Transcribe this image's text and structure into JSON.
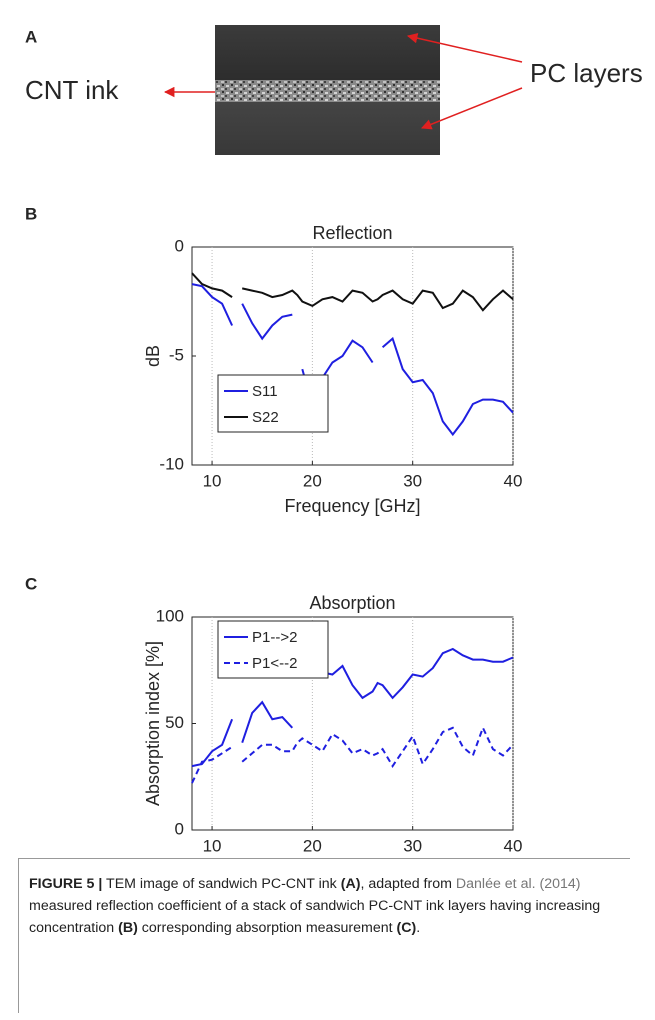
{
  "panel_a": {
    "label": "A",
    "annotations": [
      "CNT ink",
      "PC layers"
    ]
  },
  "chart_data": [
    {
      "type": "line",
      "panel_label": "B",
      "title": "Reflection",
      "x_label": "Frequency [GHz]",
      "y_label": "dB",
      "x": [
        8,
        9,
        10,
        11,
        12,
        12.5,
        13,
        14,
        15,
        16,
        17,
        18,
        18.5,
        19,
        20,
        21,
        22,
        23,
        24,
        25,
        26,
        26.5,
        27,
        28,
        29,
        30,
        31,
        32,
        33,
        34,
        35,
        36,
        37,
        38,
        39,
        40
      ],
      "xlim": [
        8,
        40
      ],
      "xticks": [
        10,
        20,
        30,
        40
      ],
      "ylim": [
        -10,
        0
      ],
      "yticks": [
        -10,
        -5,
        0
      ],
      "grid": true,
      "legend": "lower left",
      "series": [
        {
          "name": "S11",
          "color": "#1f1fe0",
          "linestyle": "solid",
          "values": [
            -1.7,
            -1.8,
            -2.3,
            -2.6,
            -3.6,
            null,
            -2.6,
            -3.5,
            -4.2,
            -3.6,
            -3.2,
            -3.1,
            null,
            -5.6,
            -7.3,
            -6.0,
            -5.3,
            -5.0,
            -4.3,
            -4.6,
            -5.3,
            null,
            -4.6,
            -4.2,
            -5.6,
            -6.2,
            -6.1,
            -6.7,
            -8.0,
            -8.6,
            -8.0,
            -7.2,
            -7.0,
            -7.0,
            -7.1,
            -7.6
          ]
        },
        {
          "name": "S22",
          "color": "#111111",
          "linestyle": "solid",
          "values": [
            -1.2,
            -1.7,
            -1.9,
            -2.0,
            -2.3,
            null,
            -1.9,
            -2.0,
            -2.1,
            -2.3,
            -2.2,
            -2.0,
            -2.2,
            -2.5,
            -2.7,
            -2.4,
            -2.3,
            -2.5,
            -2.0,
            -2.1,
            -2.5,
            -2.4,
            -2.2,
            -2.0,
            -2.4,
            -2.6,
            -2.0,
            -2.1,
            -2.8,
            -2.6,
            -2.0,
            -2.3,
            -2.9,
            -2.4,
            -2.0,
            -2.4
          ]
        }
      ]
    },
    {
      "type": "line",
      "panel_label": "C",
      "title": "Absorption",
      "x_label": "Frequency [GHz]",
      "y_label": "Absorption index [%]",
      "x": [
        8,
        9,
        10,
        11,
        12,
        12.5,
        13,
        14,
        15,
        16,
        17,
        18,
        18.5,
        19,
        20,
        21,
        22,
        23,
        24,
        25,
        26,
        26.5,
        27,
        28,
        29,
        30,
        31,
        32,
        33,
        34,
        35,
        36,
        37,
        38,
        39,
        40
      ],
      "xlim": [
        8,
        40
      ],
      "xticks": [
        10,
        20,
        30,
        40
      ],
      "ylim": [
        0,
        100
      ],
      "yticks": [
        0,
        50,
        100
      ],
      "grid": true,
      "legend": "upper left",
      "series": [
        {
          "name": "P1-->2",
          "color": "#1f1fe0",
          "linestyle": "solid",
          "values": [
            30,
            31,
            37,
            40,
            52,
            null,
            41,
            55,
            60,
            52,
            53,
            48,
            null,
            73,
            80,
            74,
            73,
            77,
            68,
            62,
            65,
            69,
            68,
            62,
            67,
            73,
            72,
            76,
            83,
            85,
            82,
            80,
            80,
            79,
            79,
            81
          ]
        },
        {
          "name": "P1<--2",
          "color": "#1f1fe0",
          "linestyle": "dashed",
          "values": [
            22,
            32,
            33,
            36,
            39,
            null,
            32,
            36,
            40,
            40,
            37,
            37,
            41,
            43,
            40,
            37,
            45,
            42,
            36,
            38,
            35,
            36,
            38,
            30,
            37,
            44,
            31,
            38,
            46,
            48,
            39,
            35,
            48,
            38,
            35,
            40
          ]
        }
      ]
    }
  ],
  "caption": [
    "FIGURE 5 |",
    "TEM image of sandwich PC-CNT ink",
    "(A)",
    ", adapted from",
    "Danlée et al. (2014)",
    "measured reflection coefficient of a stack of sandwich PC-CNT ink layers having increasing concentration",
    "(B)",
    "corresponding absorption measurement",
    "(C)",
    "."
  ]
}
